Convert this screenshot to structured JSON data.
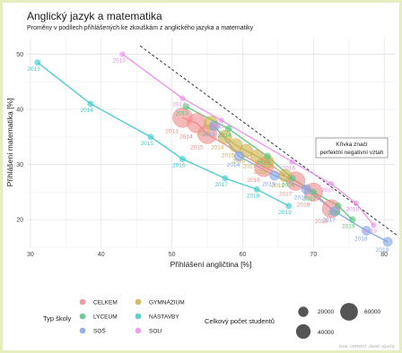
{
  "chart_data": {
    "type": "scatter",
    "title": "Anglický jazyk a matematika",
    "subtitle": "Proměny v podílech přihlášených ke zkouškám z anglického jazyka a matematiky",
    "xlabel": "Přihlášení angličtina [%]",
    "ylabel": "Přihlášení matematika [%]",
    "xlim": [
      29.5,
      81.5
    ],
    "ylim": [
      15,
      53
    ],
    "x_ticks": [
      30,
      40,
      50,
      60,
      70,
      80
    ],
    "y_ticks": [
      20,
      30,
      40,
      50
    ],
    "grid": true,
    "annotation": "Křivka značí perfektní negativní vztah",
    "reference_line": {
      "x": [
        45.5,
        82
      ],
      "y": [
        51.5,
        17
      ]
    },
    "legend_type_title": "Typ školy",
    "legend_size_title": "Celkový počet studentů",
    "size_legend_values": [
      20000,
      40000,
      60000
    ],
    "series": [
      {
        "name": "CELKEM",
        "color": "#f08a8a",
        "points": [
          {
            "label": "2013",
            "x": 51.5,
            "y": 38.5,
            "size": 60000
          },
          {
            "label": "2014",
            "x": 53.5,
            "y": 37.5,
            "size": 58000
          },
          {
            "label": "2015",
            "x": 55.0,
            "y": 35.5,
            "size": 56000
          },
          {
            "label": "2016",
            "x": 63.0,
            "y": 29.5,
            "size": 55000
          },
          {
            "label": "2017",
            "x": 67.5,
            "y": 27.0,
            "size": 54000
          },
          {
            "label": "2018",
            "x": 70.0,
            "y": 25.0,
            "size": 52000
          },
          {
            "label": "2019",
            "x": 72.5,
            "y": 22.0,
            "size": 50000
          }
        ]
      },
      {
        "name": "GYMNÁZIUM",
        "color": "#c9b14a",
        "points": [
          {
            "label": "2013",
            "x": 55.5,
            "y": 37.5,
            "size": 30000
          },
          {
            "label": "2014",
            "x": 57.5,
            "y": 35.0,
            "size": 29000
          },
          {
            "label": "2015",
            "x": 59.0,
            "y": 33.5,
            "size": 28000
          },
          {
            "label": "2016",
            "x": 60.5,
            "y": 32.5,
            "size": 27000
          },
          {
            "label": "2017",
            "x": 62.0,
            "y": 31.5,
            "size": 26000
          },
          {
            "label": "2018",
            "x": 63.5,
            "y": 30.5,
            "size": 26000
          },
          {
            "label": "2019",
            "x": 66.0,
            "y": 28.0,
            "size": 25000
          }
        ]
      },
      {
        "name": "LYCEUM",
        "color": "#55c47a",
        "points": [
          {
            "label": "2013",
            "x": 52.0,
            "y": 40.5,
            "size": 6000
          },
          {
            "label": "2014",
            "x": 58.0,
            "y": 36.5,
            "size": 6000
          },
          {
            "label": "2015",
            "x": 63.5,
            "y": 31.5,
            "size": 6000
          },
          {
            "label": "2016",
            "x": 67.0,
            "y": 27.5,
            "size": 6000
          },
          {
            "label": "2017",
            "x": 70.0,
            "y": 25.0,
            "size": 6000
          },
          {
            "label": "2018",
            "x": 73.5,
            "y": 22.5,
            "size": 6000
          },
          {
            "label": "2019",
            "x": 75.5,
            "y": 20.0,
            "size": 6000
          }
        ]
      },
      {
        "name": "NÁSTAVBY",
        "color": "#3fc9c9",
        "points": [
          {
            "label": "2013",
            "x": 31.0,
            "y": 48.5,
            "size": 5000
          },
          {
            "label": "2014",
            "x": 38.5,
            "y": 41.0,
            "size": 5000
          },
          {
            "label": "2015",
            "x": 47.0,
            "y": 35.0,
            "size": 5000
          },
          {
            "label": "2016",
            "x": 51.5,
            "y": 31.0,
            "size": 5000
          },
          {
            "label": "2017",
            "x": 57.5,
            "y": 27.5,
            "size": 5000
          },
          {
            "label": "2018",
            "x": 62.0,
            "y": 25.5,
            "size": 5000
          },
          {
            "label": "2019",
            "x": 66.5,
            "y": 22.5,
            "size": 5000
          }
        ]
      },
      {
        "name": "SOŠ",
        "color": "#7fa3e6",
        "points": [
          {
            "label": "2013",
            "x": 56.0,
            "y": 37.0,
            "size": 15000
          },
          {
            "label": "2014",
            "x": 59.5,
            "y": 31.5,
            "size": 15000
          },
          {
            "label": "2015",
            "x": 64.5,
            "y": 28.0,
            "size": 14000
          },
          {
            "label": "2016",
            "x": 69.0,
            "y": 25.5,
            "size": 14000
          },
          {
            "label": "2017",
            "x": 73.0,
            "y": 21.5,
            "size": 14000
          },
          {
            "label": "2018",
            "x": 77.5,
            "y": 18.0,
            "size": 13000
          },
          {
            "label": "2019",
            "x": 80.5,
            "y": 16.0,
            "size": 13000
          }
        ]
      },
      {
        "name": "SOU",
        "color": "#e98ee6",
        "points": [
          {
            "label": "2013",
            "x": 43.0,
            "y": 50.0,
            "size": 4000
          },
          {
            "label": "2014",
            "x": 51.5,
            "y": 42.0,
            "size": 4000
          },
          {
            "label": "2015",
            "x": 57.0,
            "y": 38.0,
            "size": 4000
          },
          {
            "label": "2016",
            "x": 67.0,
            "y": 30.5,
            "size": 4000
          },
          {
            "label": "2017",
            "x": 72.5,
            "y": 26.5,
            "size": 4000
          },
          {
            "label": "2018",
            "x": 76.0,
            "y": 23.0,
            "size": 4000
          },
          {
            "label": "2019",
            "x": 78.5,
            "y": 19.0,
            "size": 4000
          }
        ]
      }
    ]
  },
  "caption": "Data: CERMAT, vlastní výpočty"
}
